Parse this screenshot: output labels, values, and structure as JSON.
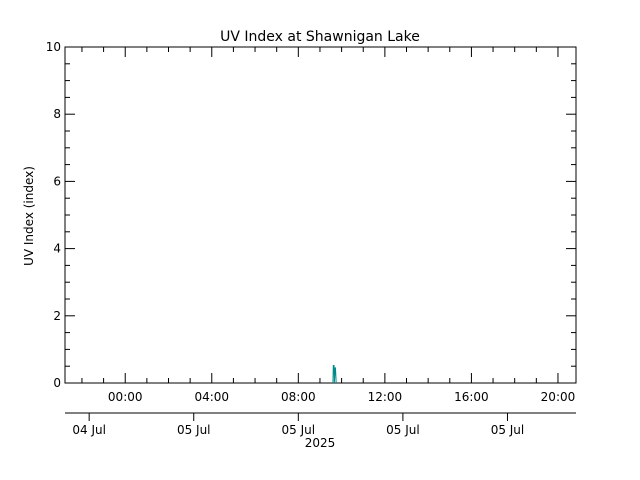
{
  "colors": {
    "background": "#ffffff",
    "axes": "#000000",
    "series": "#008b8b"
  },
  "chart_data": {
    "type": "line",
    "title": "UV Index at Shawnigan Lake",
    "ylabel": "UV Index (index)",
    "xlabel": "",
    "year_label": "2025",
    "ylim": [
      0,
      10
    ],
    "xlim": [
      "04 Jul 21:13",
      "05 Jul 20:50"
    ],
    "grid": false,
    "yticks": [
      0,
      2,
      4,
      6,
      8,
      10
    ],
    "xticks": [
      {
        "t": "05 Jul 00:00",
        "label": "00:00"
      },
      {
        "t": "05 Jul 04:00",
        "label": "04:00"
      },
      {
        "t": "05 Jul 08:00",
        "label": "08:00"
      },
      {
        "t": "05 Jul 12:00",
        "label": "12:00"
      },
      {
        "t": "05 Jul 16:00",
        "label": "16:00"
      },
      {
        "t": "05 Jul 20:00",
        "label": "20:00"
      }
    ],
    "date_ticks": [
      {
        "t": "04 Jul 22:20",
        "label": "04 Jul"
      },
      {
        "t": "05 Jul 03:10",
        "label": "05 Jul"
      },
      {
        "t": "05 Jul 08:00",
        "label": "05 Jul"
      },
      {
        "t": "05 Jul 12:50",
        "label": "05 Jul"
      },
      {
        "t": "05 Jul 17:40",
        "label": "05 Jul"
      }
    ],
    "series": [
      {
        "x": [
          "05 Jul 09:36",
          "05 Jul 09:37",
          "05 Jul 09:39",
          "05 Jul 09:40",
          "05 Jul 09:42",
          "05 Jul 09:43",
          "05 Jul 09:45"
        ],
        "y": [
          0,
          0.52,
          0.52,
          0,
          0.45,
          0.45,
          0
        ]
      }
    ]
  }
}
